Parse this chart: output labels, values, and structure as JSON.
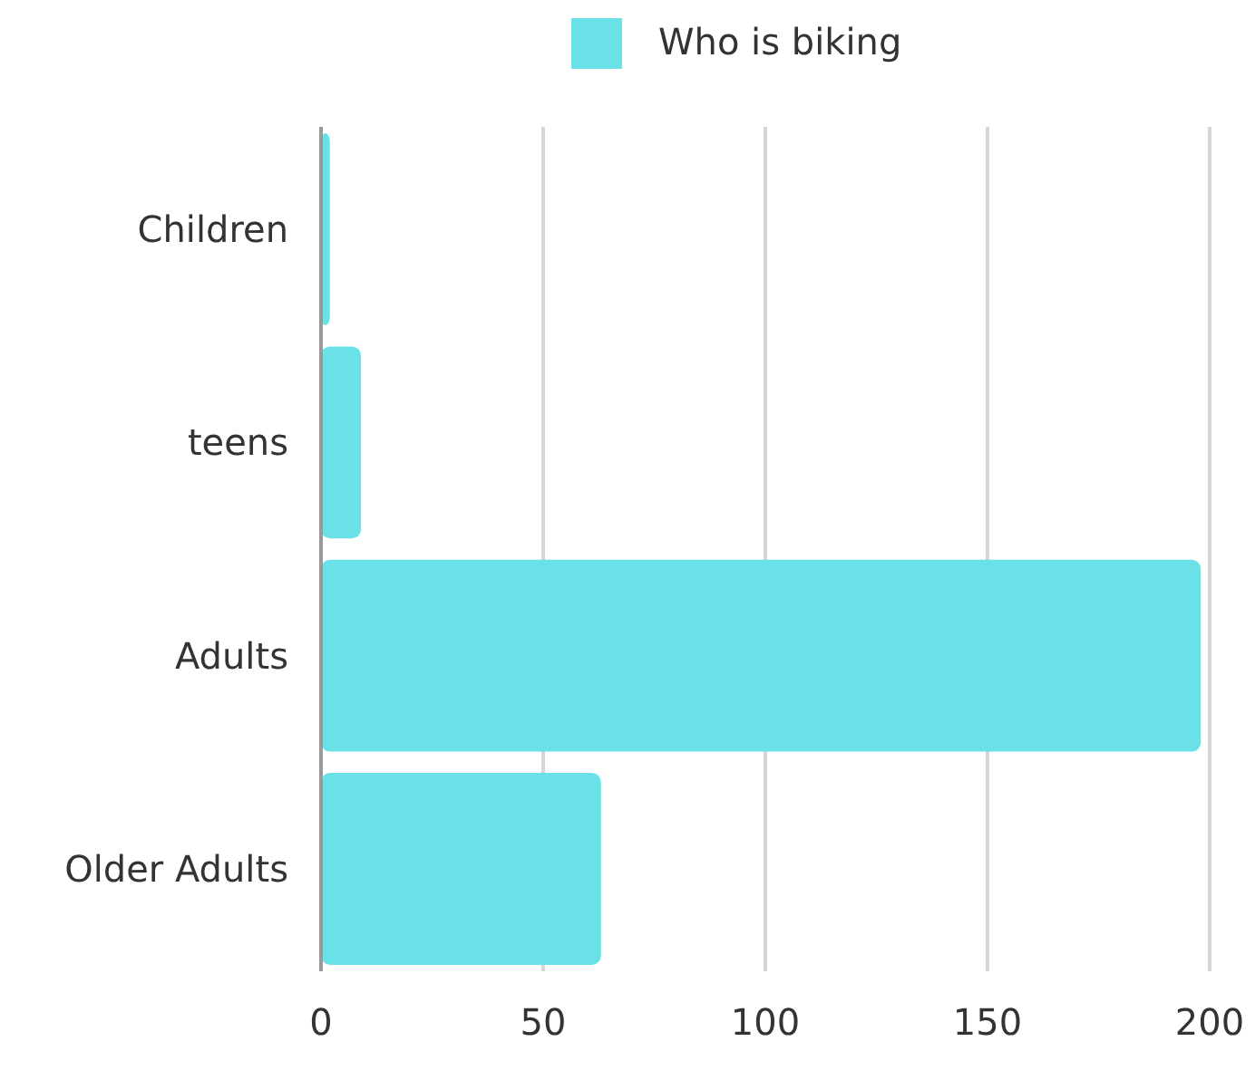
{
  "chart_data": {
    "type": "bar",
    "orientation": "horizontal",
    "categories": [
      "Children",
      "teens",
      "Adults",
      "Older Adults"
    ],
    "series": [
      {
        "name": "Who is biking",
        "color": "#69e1e6",
        "values": [
          2,
          9,
          198,
          63
        ]
      }
    ],
    "xlim": [
      0,
      200
    ],
    "xticks": [
      0,
      50,
      100,
      150,
      200
    ],
    "grid": "x",
    "legend": "top"
  }
}
